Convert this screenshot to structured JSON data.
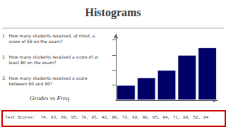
{
  "chart_data": {
    "type": "bar",
    "title": "Histograms",
    "subtitle": "Grades vs Freq.",
    "annotations": [
      "1.  How many students received, at most, a\n     score of 69 on the exam?",
      "2.  How many students received a score of at\n     least 80 on the exam?",
      "3.  How many students received a score\n     between 60 and 90?",
      "Test Scores:  74, 83, 69, 95, 78, 85, 42, 98, 73, 68, 90, 85, 84, 71, 88, 52, 94"
    ],
    "categories": [
      null,
      null,
      null,
      null,
      null
    ],
    "values": [
      2,
      3,
      4,
      6,
      7
    ],
    "color": "#000066",
    "ylim": [
      0,
      8.8
    ],
    "yticks": [
      2,
      4,
      6,
      8
    ],
    "grid": false,
    "tick_labels": false
  }
}
